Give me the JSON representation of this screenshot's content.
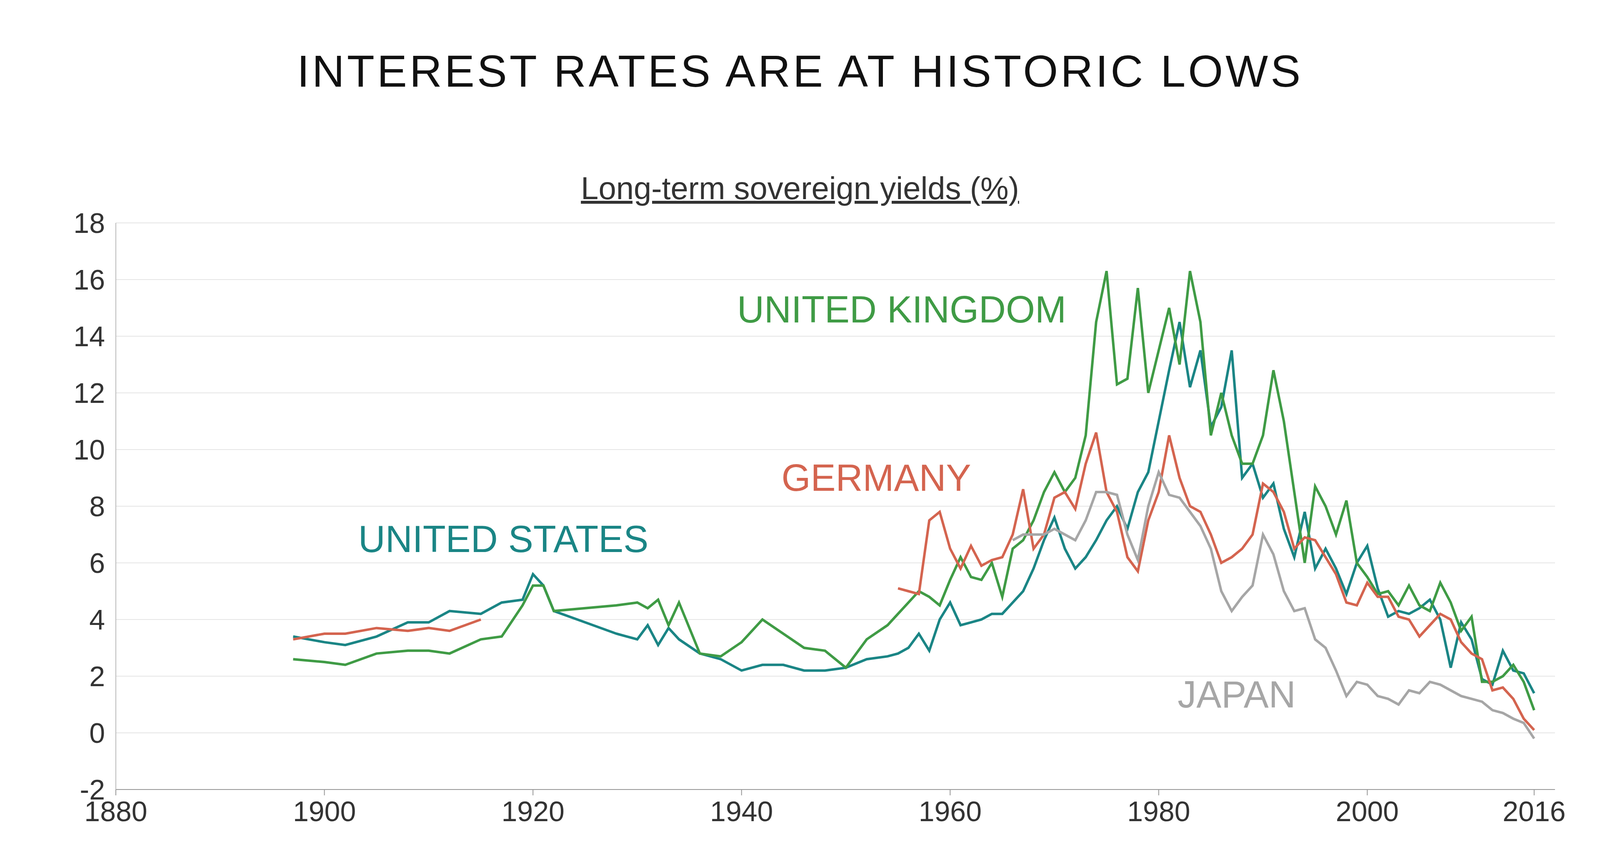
{
  "chart_data": {
    "type": "line",
    "title": "INTEREST RATES ARE AT HISTORIC LOWS",
    "subtitle": "Long-term sovereign yields (%)",
    "grid": true,
    "x": [
      1897,
      1900,
      1902,
      1905,
      1908,
      1910,
      1912,
      1915,
      1917,
      1919,
      1920,
      1921,
      1922,
      1925,
      1928,
      1930,
      1931,
      1932,
      1933,
      1934,
      1936,
      1938,
      1940,
      1942,
      1944,
      1946,
      1948,
      1950,
      1952,
      1954,
      1955,
      1956,
      1957,
      1958,
      1959,
      1960,
      1961,
      1962,
      1963,
      1964,
      1965,
      1966,
      1967,
      1968,
      1969,
      1970,
      1971,
      1972,
      1973,
      1974,
      1975,
      1976,
      1977,
      1978,
      1979,
      1980,
      1981,
      1982,
      1983,
      1984,
      1985,
      1986,
      1987,
      1988,
      1989,
      1990,
      1991,
      1992,
      1993,
      1994,
      1995,
      1996,
      1997,
      1998,
      1999,
      2000,
      2001,
      2002,
      2003,
      2004,
      2005,
      2006,
      2007,
      2008,
      2009,
      2010,
      2011,
      2012,
      2013,
      2014,
      2015,
      2016
    ],
    "xlim": [
      1880,
      2018
    ],
    "xticks": [
      1880,
      1900,
      1920,
      1940,
      1960,
      1980,
      2000,
      2016
    ],
    "ylim": [
      -2,
      18
    ],
    "yticks": [
      -2,
      0,
      2,
      4,
      6,
      8,
      10,
      12,
      14,
      16,
      18
    ],
    "series": [
      {
        "name": "UNITED STATES",
        "color": "#1a8585",
        "values": [
          3.4,
          3.2,
          3.1,
          3.4,
          3.9,
          3.9,
          4.3,
          4.2,
          4.6,
          4.7,
          5.6,
          5.2,
          4.3,
          3.9,
          3.5,
          3.3,
          3.8,
          3.1,
          3.7,
          3.3,
          2.8,
          2.6,
          2.2,
          2.4,
          2.4,
          2.2,
          2.2,
          2.3,
          2.6,
          2.7,
          2.8,
          3.0,
          3.5,
          2.9,
          4.0,
          4.6,
          3.8,
          3.9,
          4.0,
          4.2,
          4.2,
          4.6,
          5.0,
          5.8,
          6.8,
          7.6,
          6.5,
          5.8,
          6.2,
          6.8,
          7.5,
          8.0,
          7.2,
          8.5,
          9.2,
          11.0,
          12.8,
          14.5,
          12.2,
          13.5,
          10.8,
          11.5,
          13.5,
          9.0,
          9.5,
          8.3,
          8.8,
          7.2,
          6.2,
          7.8,
          5.8,
          6.5,
          5.8,
          4.9,
          6.0,
          6.6,
          5.1,
          4.1,
          4.3,
          4.2,
          4.4,
          4.7,
          4.0,
          2.3,
          3.9,
          3.3,
          1.9,
          1.7,
          2.9,
          2.2,
          2.1,
          1.4
        ]
      },
      {
        "name": "UNITED KINGDOM",
        "color": "#3f9b45",
        "values": [
          2.6,
          2.5,
          2.4,
          2.8,
          2.9,
          2.9,
          2.8,
          3.3,
          3.4,
          4.5,
          5.2,
          5.2,
          4.3,
          4.4,
          4.5,
          4.6,
          4.4,
          4.7,
          3.8,
          4.6,
          2.8,
          2.7,
          3.2,
          4.0,
          3.5,
          3.0,
          2.9,
          2.3,
          3.3,
          3.8,
          4.2,
          4.6,
          5.0,
          4.8,
          4.5,
          5.4,
          6.2,
          5.5,
          5.4,
          6.0,
          4.8,
          6.5,
          6.8,
          7.5,
          8.5,
          9.2,
          8.5,
          9.0,
          10.5,
          14.5,
          16.3,
          12.3,
          12.5,
          15.7,
          12.0,
          13.5,
          15.0,
          13.0,
          16.3,
          14.5,
          10.5,
          12.0,
          10.5,
          9.5,
          9.5,
          10.5,
          12.8,
          11.0,
          8.5,
          6.0,
          8.7,
          8.0,
          7.0,
          8.2,
          6.0,
          5.5,
          4.9,
          5.0,
          4.5,
          5.2,
          4.5,
          4.3,
          5.3,
          4.6,
          3.6,
          4.1,
          1.8,
          1.8,
          2.0,
          2.4,
          1.8,
          0.8
        ]
      },
      {
        "name": "GERMANY",
        "color": "#d4644f",
        "values": [
          3.3,
          3.5,
          3.5,
          3.7,
          3.6,
          3.7,
          3.6,
          4.0,
          null,
          null,
          null,
          null,
          null,
          null,
          null,
          null,
          null,
          null,
          null,
          null,
          null,
          null,
          null,
          null,
          null,
          null,
          null,
          null,
          null,
          null,
          5.1,
          5.0,
          4.9,
          7.5,
          7.8,
          6.5,
          5.8,
          6.6,
          5.9,
          6.1,
          6.2,
          7.0,
          8.6,
          6.5,
          7.0,
          8.3,
          8.5,
          7.9,
          9.5,
          10.6,
          8.5,
          7.8,
          6.2,
          5.7,
          7.5,
          8.5,
          10.5,
          9.0,
          8.0,
          7.8,
          7.0,
          6.0,
          6.2,
          6.5,
          7.0,
          8.8,
          8.5,
          7.8,
          6.5,
          6.9,
          6.8,
          6.2,
          5.6,
          4.6,
          4.5,
          5.3,
          4.8,
          4.8,
          4.1,
          4.0,
          3.4,
          3.8,
          4.2,
          4.0,
          3.2,
          2.8,
          2.6,
          1.5,
          1.6,
          1.2,
          0.5,
          0.1
        ]
      },
      {
        "name": "JAPAN",
        "color": "#a6a6a6",
        "values": [
          null,
          null,
          null,
          null,
          null,
          null,
          null,
          null,
          null,
          null,
          null,
          null,
          null,
          null,
          null,
          null,
          null,
          null,
          null,
          null,
          null,
          null,
          null,
          null,
          null,
          null,
          null,
          null,
          null,
          null,
          null,
          null,
          null,
          null,
          null,
          null,
          null,
          null,
          null,
          null,
          null,
          6.8,
          7.0,
          7.0,
          7.0,
          7.2,
          7.0,
          6.8,
          7.5,
          8.5,
          8.5,
          8.4,
          7.0,
          6.1,
          8.0,
          9.2,
          8.4,
          8.3,
          7.8,
          7.3,
          6.5,
          5.0,
          4.3,
          4.8,
          5.2,
          7.0,
          6.3,
          5.0,
          4.3,
          4.4,
          3.3,
          3.0,
          2.2,
          1.3,
          1.8,
          1.7,
          1.3,
          1.2,
          1.0,
          1.5,
          1.4,
          1.8,
          1.7,
          1.5,
          1.3,
          1.2,
          1.1,
          0.8,
          0.7,
          0.5,
          0.35,
          -0.2
        ]
      }
    ]
  }
}
